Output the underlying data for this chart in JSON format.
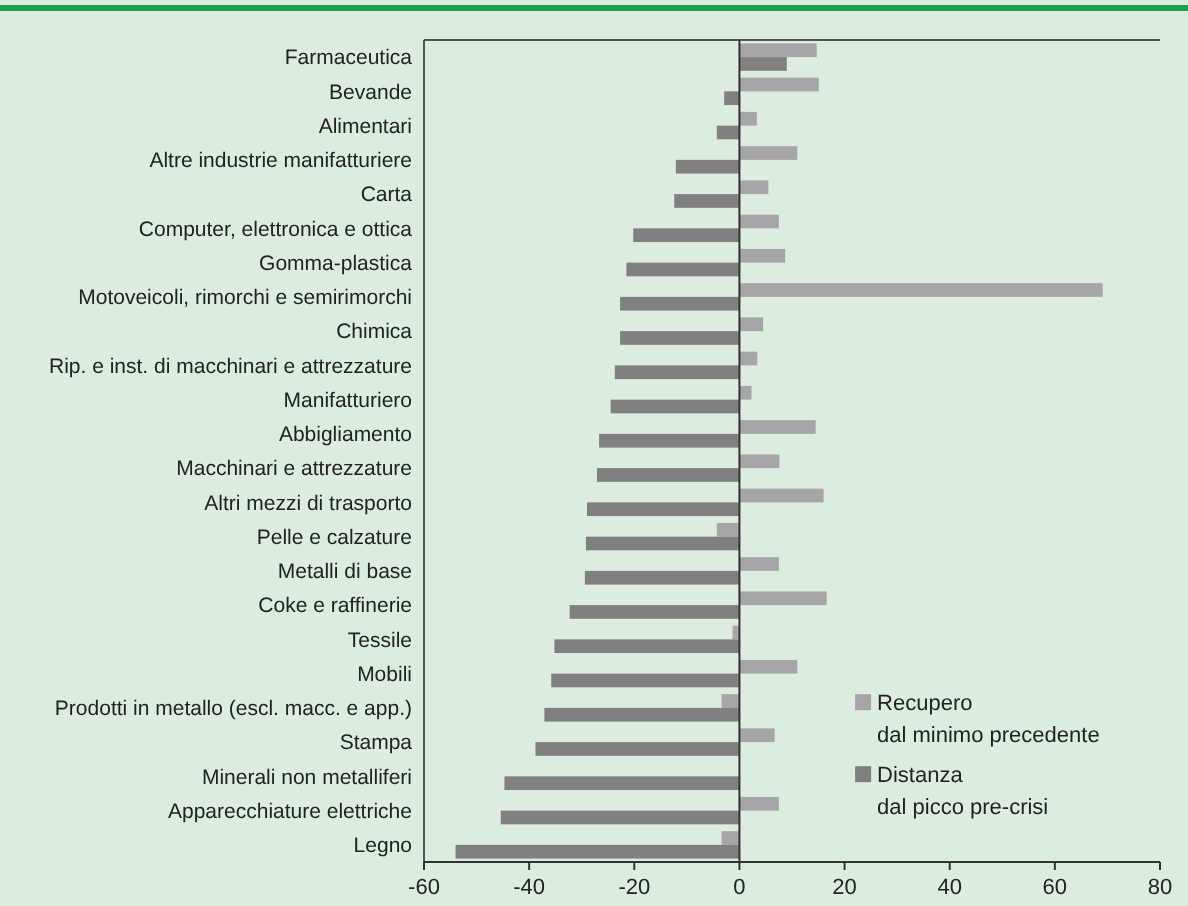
{
  "chart_data": {
    "type": "bar",
    "orientation": "horizontal",
    "categories": [
      "Farmaceutica",
      "Bevande",
      "Alimentari",
      "Altre industrie manifatturiere",
      "Carta",
      "Computer, elettronica e ottica",
      "Gomma-plastica",
      "Motoveicoli, rimorchi e semirimorchi",
      "Chimica",
      "Rip. e inst. di macchinari e attrezzature",
      "Manifatturiero",
      "Abbigliamento",
      "Macchinari e attrezzature",
      "Altri mezzi di trasporto",
      "Pelle e calzature",
      "Metalli di base",
      "Coke e raffinerie",
      "Tessile",
      "Mobili",
      "Prodotti in metallo (escl. macc. e app.)",
      "Stampa",
      "Minerali non metalliferi",
      "Apparecchiature elettriche",
      "Legno"
    ],
    "series": [
      {
        "name": "Recupero\ndal minimo precedente",
        "color": "#a6a6a8",
        "values": [
          14.7,
          15.1,
          3.3,
          11.0,
          5.5,
          7.5,
          8.7,
          69.1,
          4.5,
          3.4,
          2.3,
          14.5,
          7.6,
          16.0,
          -4.3,
          7.5,
          16.6,
          -1.3,
          11.0,
          -3.4,
          6.7,
          null,
          7.5,
          -3.4
        ]
      },
      {
        "name": "Distanza\ndal picco pre-crisi",
        "color": "#808080",
        "values": [
          9.0,
          -2.9,
          -4.3,
          -12.1,
          -12.4,
          -20.2,
          -21.5,
          -22.7,
          -22.7,
          -23.7,
          -24.5,
          -26.7,
          -27.1,
          -29.0,
          -29.2,
          -29.4,
          -32.3,
          -35.2,
          -35.8,
          -37.1,
          -38.8,
          -44.7,
          -45.4,
          -54.0
        ]
      }
    ],
    "xlim": [
      -60,
      80
    ],
    "xticks": [
      -60,
      -40,
      -20,
      0,
      20,
      40,
      60,
      80
    ],
    "legend": "bottom right"
  }
}
